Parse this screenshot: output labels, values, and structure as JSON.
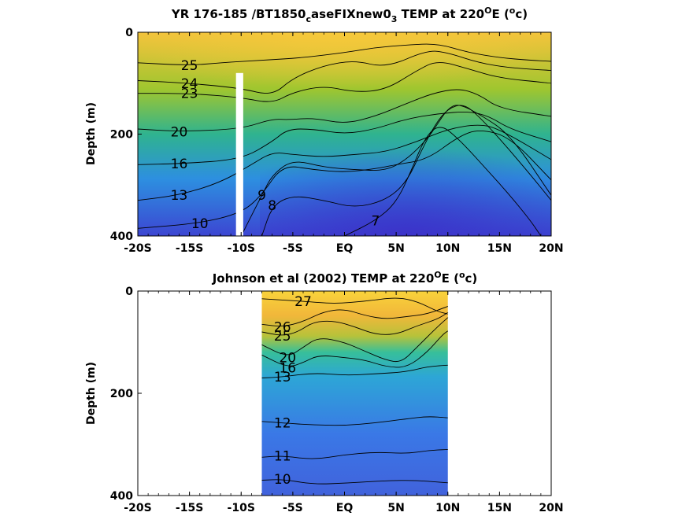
{
  "colors": {
    "warm": "#f5c33a",
    "mid": "#31b78f",
    "cool": "#3c52d8",
    "contour": "#000000",
    "gap": "#ffffff"
  },
  "chart_data": [
    {
      "type": "heatmap",
      "title": {
        "main": "YR 176-185 /BT1850",
        "sub1": "c",
        "mid": "aseFIXnew0",
        "sub2": "3",
        "tail": " TEMP at 220",
        "sup": "O",
        "unit_open": "E (",
        "unit_sup": "o",
        "unit_close": "c)"
      },
      "ylabel": "Depth (m)",
      "xlim": [
        -20,
        20
      ],
      "ylim": [
        0,
        400
      ],
      "y_reversed": true,
      "x_ticks": [
        {
          "value": -20,
          "label": "-20S"
        },
        {
          "value": -15,
          "label": "-15S"
        },
        {
          "value": -10,
          "label": "-10S"
        },
        {
          "value": -5,
          "label": "-5S"
        },
        {
          "value": 0,
          "label": "EQ"
        },
        {
          "value": 5,
          "label": "5N"
        },
        {
          "value": 10,
          "label": "10N"
        },
        {
          "value": 15,
          "label": "15N"
        },
        {
          "value": 20,
          "label": "20N"
        }
      ],
      "y_ticks": [
        {
          "value": 0,
          "label": "0"
        },
        {
          "value": 200,
          "label": "200"
        },
        {
          "value": 400,
          "label": "400"
        }
      ],
      "data_gap": {
        "x": [
          -10.5,
          -9.8
        ],
        "depth": [
          80,
          400
        ]
      },
      "data_range": {
        "x": [
          -20,
          20
        ],
        "depth": [
          0,
          400
        ]
      },
      "color_range": [
        6,
        28
      ],
      "colormap": "parula",
      "isotherms": [
        {
          "temp": 25,
          "label": "25",
          "points": [
            [
              -20,
              60
            ],
            [
              -15,
              65
            ],
            [
              -12,
              60
            ],
            [
              -8,
              55
            ],
            [
              -4,
              50
            ],
            [
              0,
              40
            ],
            [
              3,
              30
            ],
            [
              6,
              25
            ],
            [
              9,
              22
            ],
            [
              12,
              40
            ],
            [
              15,
              50
            ],
            [
              18,
              55
            ],
            [
              20,
              57
            ]
          ]
        },
        {
          "temp": 24,
          "label": "24",
          "points": [
            [
              -20,
              95
            ],
            [
              -15,
              100
            ],
            [
              -10,
              110
            ],
            [
              -7,
              125
            ],
            [
              -5,
              90
            ],
            [
              -2,
              65
            ],
            [
              1,
              55
            ],
            [
              4,
              70
            ],
            [
              8,
              35
            ],
            [
              10,
              40
            ],
            [
              13,
              60
            ],
            [
              16,
              70
            ],
            [
              20,
              75
            ]
          ]
        },
        {
          "temp": 23,
          "label": "23",
          "points": [
            [
              -20,
              120
            ],
            [
              -15,
              120
            ],
            [
              -10,
              128
            ],
            [
              -7,
              140
            ],
            [
              -5,
              118
            ],
            [
              -2,
              105
            ],
            [
              1,
              118
            ],
            [
              4,
              113
            ],
            [
              7,
              75
            ],
            [
              9,
              55
            ],
            [
              12,
              72
            ],
            [
              15,
              90
            ],
            [
              20,
              100
            ]
          ]
        },
        {
          "temp": 20,
          "label": "20",
          "points": [
            [
              -20,
              190
            ],
            [
              -16,
              195
            ],
            [
              -10,
              190
            ],
            [
              -7,
              170
            ],
            [
              -5.5,
              172
            ],
            [
              -3,
              168
            ],
            [
              0,
              180
            ],
            [
              3,
              165
            ],
            [
              6,
              140
            ],
            [
              8.5,
              120
            ],
            [
              11,
              110
            ],
            [
              13,
              122
            ],
            [
              15,
              150
            ],
            [
              20,
              165
            ]
          ]
        },
        {
          "temp": 16,
          "label": "16",
          "points": [
            [
              -20,
              260
            ],
            [
              -16,
              258
            ],
            [
              -10,
              250
            ],
            [
              -7,
              215
            ],
            [
              -5.5,
              190
            ],
            [
              -3,
              190
            ],
            [
              0,
              200
            ],
            [
              3,
              190
            ],
            [
              6,
              170
            ],
            [
              9,
              160
            ],
            [
              12,
              155
            ],
            [
              14,
              165
            ],
            [
              16,
              190
            ],
            [
              20,
              215
            ]
          ]
        },
        {
          "temp": 13,
          "label": "13",
          "points": [
            [
              -20,
              330
            ],
            [
              -16,
              320
            ],
            [
              -12,
              295
            ],
            [
              -9,
              260
            ],
            [
              -7,
              235
            ],
            [
              -5,
              240
            ],
            [
              -2,
              245
            ],
            [
              1,
              240
            ],
            [
              4,
              235
            ],
            [
              7,
              215
            ],
            [
              10,
              190
            ],
            [
              13,
              180
            ],
            [
              15,
              190
            ],
            [
              20,
              250
            ]
          ]
        },
        {
          "temp": 10,
          "label": "10",
          "points": [
            [
              -20,
              385
            ],
            [
              -14,
              375
            ],
            [
              -10,
              355
            ],
            [
              -8,
              320
            ],
            [
              -6,
              260
            ],
            [
              -3,
              270
            ],
            [
              0,
              275
            ],
            [
              3,
              268
            ],
            [
              5,
              260
            ],
            [
              8,
              250
            ],
            [
              11,
              205
            ],
            [
              13,
              190
            ],
            [
              16,
              205
            ],
            [
              20,
              290
            ]
          ]
        },
        {
          "temp": 9,
          "label": "9",
          "points": [
            [
              -10,
              400
            ],
            [
              -8,
              320
            ],
            [
              -7,
              280
            ],
            [
              -5,
              250
            ],
            [
              -2,
              265
            ],
            [
              1,
              270
            ],
            [
              4,
              272
            ],
            [
              6,
              250
            ],
            [
              8,
              210
            ],
            [
              9,
              180
            ],
            [
              10,
              150
            ],
            [
              11,
              140
            ],
            [
              13,
              160
            ],
            [
              16,
              200
            ],
            [
              20,
              320
            ]
          ]
        },
        {
          "temp": 8,
          "label": "8",
          "points": [
            [
              -8,
              400
            ],
            [
              -7,
              340
            ],
            [
              -5,
              320
            ],
            [
              -2,
              330
            ],
            [
              1,
              345
            ],
            [
              4,
              330
            ],
            [
              6,
              295
            ],
            [
              7.5,
              230
            ],
            [
              8.8,
              180
            ],
            [
              10,
              150
            ],
            [
              11.5,
              140
            ],
            [
              13,
              165
            ],
            [
              15.5,
              220
            ],
            [
              18,
              280
            ],
            [
              20,
              330
            ]
          ]
        },
        {
          "temp": 7,
          "label": "7",
          "points": [
            [
              0,
              400
            ],
            [
              3,
              370
            ],
            [
              5,
              335
            ],
            [
              6.5,
              270
            ],
            [
              7.5,
              220
            ],
            [
              8.5,
              190
            ],
            [
              9.5,
              185
            ],
            [
              10.5,
              200
            ],
            [
              12,
              230
            ],
            [
              14,
              275
            ],
            [
              16,
              320
            ],
            [
              18,
              370
            ],
            [
              19,
              400
            ]
          ]
        }
      ]
    },
    {
      "type": "heatmap",
      "title": {
        "main": "Johnson et al (2002) TEMP at 220",
        "sup": "O",
        "unit_open": "E (",
        "unit_sup": "o",
        "unit_close": "c)"
      },
      "ylabel": "Depth (m)",
      "xlim": [
        -20,
        20
      ],
      "ylim": [
        0,
        400
      ],
      "y_reversed": true,
      "x_ticks": [
        {
          "value": -20,
          "label": "-20S"
        },
        {
          "value": -15,
          "label": "-15S"
        },
        {
          "value": -10,
          "label": "-10S"
        },
        {
          "value": -5,
          "label": "-5S"
        },
        {
          "value": 0,
          "label": "EQ"
        },
        {
          "value": 5,
          "label": "5N"
        },
        {
          "value": 10,
          "label": "10N"
        },
        {
          "value": 15,
          "label": "15N"
        },
        {
          "value": 20,
          "label": "20N"
        }
      ],
      "y_ticks": [
        {
          "value": 0,
          "label": "0"
        },
        {
          "value": 200,
          "label": "200"
        },
        {
          "value": 400,
          "label": "400"
        }
      ],
      "data_range": {
        "x": [
          -8,
          10
        ],
        "depth": [
          0,
          400
        ]
      },
      "color_range": [
        6,
        28
      ],
      "colormap": "parula",
      "isotherms": [
        {
          "temp": 27,
          "label": "27",
          "points": [
            [
              -8,
              15
            ],
            [
              -4,
              20
            ],
            [
              -1,
              25
            ],
            [
              2,
              20
            ],
            [
              5,
              12
            ],
            [
              7,
              20
            ],
            [
              9,
              40
            ],
            [
              10,
              45
            ]
          ]
        },
        {
          "temp": 26,
          "label": "26",
          "points": [
            [
              -8,
              65
            ],
            [
              -6,
              70
            ],
            [
              -4,
              60
            ],
            [
              -2,
              40
            ],
            [
              0,
              35
            ],
            [
              2,
              48
            ],
            [
              4,
              55
            ],
            [
              6,
              50
            ],
            [
              8,
              45
            ],
            [
              10,
              30
            ]
          ]
        },
        {
          "temp": 25,
          "label": "25",
          "points": [
            [
              -8,
              80
            ],
            [
              -6,
              88
            ],
            [
              -4.5,
              80
            ],
            [
              -3,
              60
            ],
            [
              -1,
              58
            ],
            [
              1,
              70
            ],
            [
              3,
              85
            ],
            [
              5,
              85
            ],
            [
              7,
              68
            ],
            [
              9,
              55
            ],
            [
              10,
              42
            ]
          ]
        },
        {
          "temp": 20,
          "label": "20",
          "points": [
            [
              -8,
              105
            ],
            [
              -5.5,
              130
            ],
            [
              -4,
              110
            ],
            [
              -2.5,
              90
            ],
            [
              0,
              100
            ],
            [
              2,
              118
            ],
            [
              4,
              135
            ],
            [
              5.5,
              140
            ],
            [
              7,
              110
            ],
            [
              9,
              70
            ],
            [
              10,
              52
            ]
          ]
        },
        {
          "temp": 16,
          "label": "16",
          "points": [
            [
              -8,
              125
            ],
            [
              -5.5,
              150
            ],
            [
              -4,
              140
            ],
            [
              -2.5,
              125
            ],
            [
              0,
              130
            ],
            [
              2,
              135
            ],
            [
              4,
              148
            ],
            [
              6,
              150
            ],
            [
              8,
              120
            ],
            [
              9.5,
              85
            ],
            [
              10,
              78
            ]
          ]
        },
        {
          "temp": 13,
          "label": "13",
          "points": [
            [
              -8,
              170
            ],
            [
              -6,
              168
            ],
            [
              -3,
              160
            ],
            [
              0,
              165
            ],
            [
              3,
              162
            ],
            [
              6,
              158
            ],
            [
              8,
              148
            ],
            [
              10,
              145
            ]
          ]
        },
        {
          "temp": 12,
          "label": "12",
          "points": [
            [
              -8,
              255
            ],
            [
              -6,
              258
            ],
            [
              -3,
              262
            ],
            [
              0,
              263
            ],
            [
              3,
              258
            ],
            [
              6,
              250
            ],
            [
              8,
              245
            ],
            [
              10,
              248
            ]
          ]
        },
        {
          "temp": 11,
          "label": "11",
          "points": [
            [
              -8,
              325
            ],
            [
              -6,
              322
            ],
            [
              -3,
              330
            ],
            [
              0,
              320
            ],
            [
              3,
              315
            ],
            [
              6,
              318
            ],
            [
              8,
              312
            ],
            [
              10,
              310
            ]
          ]
        },
        {
          "temp": 10,
          "label": "10",
          "points": [
            [
              -8,
              370
            ],
            [
              -6,
              368
            ],
            [
              -3,
              378
            ],
            [
              0,
              376
            ],
            [
              3,
              372
            ],
            [
              6,
              370
            ],
            [
              8,
              372
            ],
            [
              10,
              375
            ]
          ]
        }
      ]
    }
  ]
}
